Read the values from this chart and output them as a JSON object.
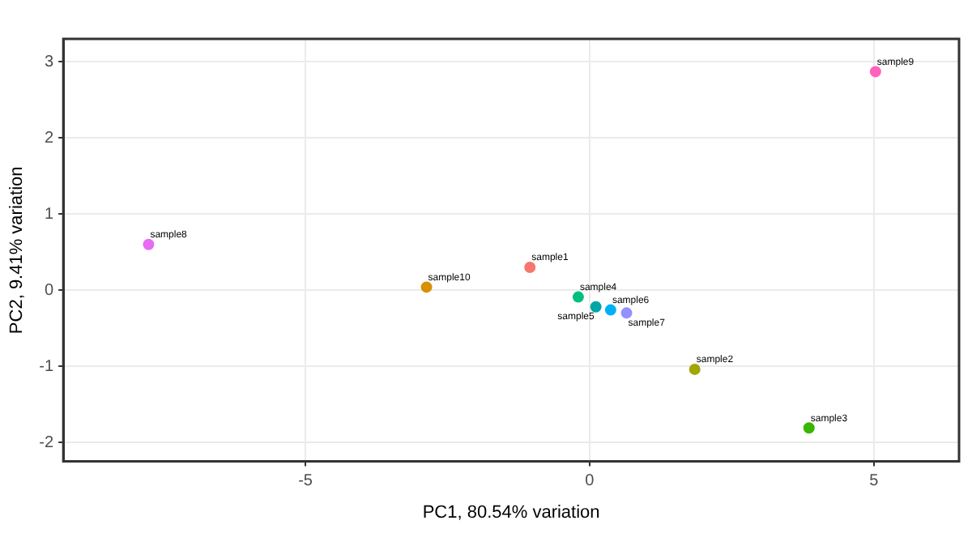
{
  "chart_data": {
    "type": "scatter",
    "xlabel": "PC1, 80.54% variation",
    "ylabel": "PC2, 9.41% variation",
    "xlim": [
      -9.26,
      6.5
    ],
    "xticks": [
      -5,
      0,
      5
    ],
    "ylim": [
      -2.25,
      3.3
    ],
    "yticks": [
      -2,
      -1,
      0,
      1,
      2,
      3
    ],
    "grid": true,
    "legend": false,
    "marker": "circle",
    "series": [
      {
        "name": "sample8",
        "color": "#e76bf3",
        "x": [
          -7.76
        ],
        "values": [
          0.6
        ]
      },
      {
        "name": "sample10",
        "color": "#d89000",
        "x": [
          -2.87
        ],
        "values": [
          0.04
        ]
      },
      {
        "name": "sample1",
        "color": "#f8766d",
        "x": [
          -1.05
        ],
        "values": [
          0.3
        ]
      },
      {
        "name": "sample4",
        "color": "#00bf7d",
        "x": [
          -0.2
        ],
        "values": [
          -0.09
        ]
      },
      {
        "name": "sample5",
        "color": "#00a5a8",
        "x": [
          0.11
        ],
        "values": [
          -0.22
        ]
      },
      {
        "name": "sample6",
        "color": "#00b0f6",
        "x": [
          0.37
        ],
        "values": [
          -0.26
        ]
      },
      {
        "name": "sample7",
        "color": "#9590ff",
        "x": [
          0.65
        ],
        "values": [
          -0.3
        ]
      },
      {
        "name": "sample2",
        "color": "#a3a500",
        "x": [
          1.85
        ],
        "values": [
          -1.04
        ]
      },
      {
        "name": "sample3",
        "color": "#39b600",
        "x": [
          3.86
        ],
        "values": [
          -1.81
        ]
      },
      {
        "name": "sample9",
        "color": "#ff62bc",
        "x": [
          5.03
        ],
        "values": [
          2.87
        ]
      }
    ]
  }
}
